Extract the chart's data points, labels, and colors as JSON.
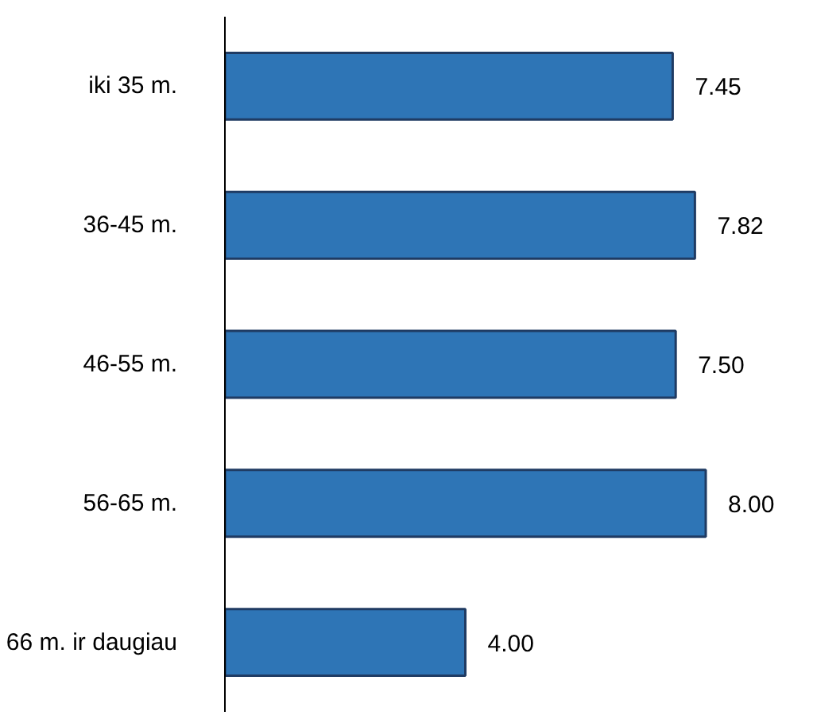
{
  "chart_data": {
    "type": "bar",
    "orientation": "horizontal",
    "categories": [
      "iki 35 m.",
      "36-45 m.",
      "46-55 m.",
      "56-65 m.",
      "66 m. ir daugiau"
    ],
    "values": [
      7.45,
      7.82,
      7.5,
      8.0,
      4.0
    ],
    "value_labels": [
      "7.45",
      "7.82",
      "7.50",
      "8.00",
      "4.00"
    ],
    "color": "#2e75b6",
    "grid": false
  }
}
